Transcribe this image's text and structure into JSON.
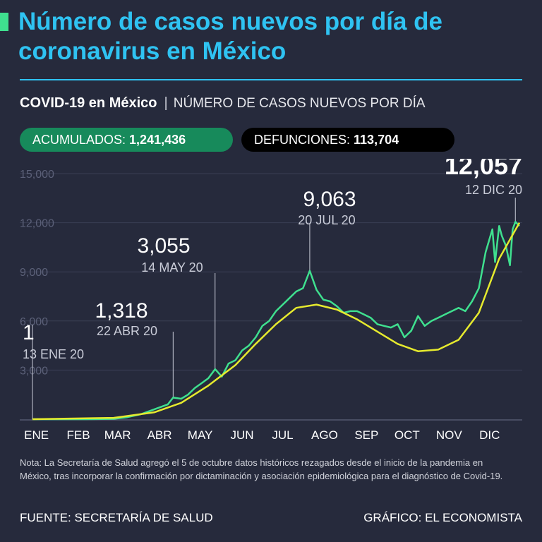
{
  "header": {
    "title": "Número de casos nuevos por día de coronavirus en México",
    "subtitle_bold": "COVID-19 en México",
    "subtitle_sep": "|",
    "subtitle_desc": "NÚMERO DE CASOS NUEVOS POR DÍA",
    "accent_color": "#3fe08f",
    "title_color": "#2fc3f2"
  },
  "stats": {
    "acumulados_label": "ACUMULADOS:",
    "acumulados_value": "1,241,436",
    "defunciones_label": "DEFUNCIONES:",
    "defunciones_value": "113,704",
    "acumulados_color": "#178a5b",
    "defunciones_color": "#000000"
  },
  "chart_data": {
    "type": "line",
    "title": "",
    "xlabel": "",
    "ylabel": "",
    "ylim": [
      0,
      15000
    ],
    "yticks": [
      3000,
      6000,
      9000,
      12000,
      15000
    ],
    "ytick_labels": [
      "3,000",
      "6,000",
      "9,000",
      "12,000",
      "15,000"
    ],
    "x_range_days": [
      0,
      360
    ],
    "months": [
      "ENE",
      "FEB",
      "MAR",
      "ABR",
      "MAY",
      "JUN",
      "JUL",
      "AGO",
      "SEP",
      "OCT",
      "NOV",
      "DIC"
    ],
    "grid": true,
    "series": [
      {
        "type": "line",
        "color": "#3fe08f",
        "x": [
          0,
          40,
          60,
          70,
          80,
          90,
          100,
          104,
          110,
          115,
          120,
          125,
          130,
          135,
          140,
          145,
          150,
          155,
          160,
          165,
          170,
          175,
          180,
          185,
          190,
          195,
          200,
          205,
          210,
          215,
          220,
          225,
          230,
          235,
          240,
          245,
          250,
          255,
          260,
          265,
          270,
          275,
          280,
          285,
          290,
          295,
          300,
          305,
          310,
          315,
          320,
          325,
          330,
          335,
          340,
          342,
          345,
          347,
          350,
          353,
          355,
          357,
          360
        ],
        "y": [
          1,
          0,
          20,
          120,
          300,
          600,
          900,
          1318,
          1250,
          1500,
          1900,
          2200,
          2500,
          3055,
          2600,
          3400,
          3600,
          4200,
          4500,
          5000,
          5700,
          6000,
          6600,
          7000,
          7400,
          7800,
          8000,
          9063,
          7900,
          7300,
          7200,
          6900,
          6500,
          6600,
          6600,
          6400,
          6200,
          5800,
          5700,
          5600,
          5800,
          5000,
          5400,
          6300,
          5700,
          6000,
          6200,
          6400,
          6600,
          6800,
          6600,
          7200,
          8000,
          10200,
          11600,
          9600,
          11800,
          11200,
          10600,
          9400,
          11600,
          12057,
          11800
        ]
      },
      {
        "type": "trend",
        "color": "#e6ea2e",
        "x": [
          0,
          60,
          90,
          110,
          130,
          150,
          165,
          180,
          195,
          210,
          225,
          240,
          255,
          270,
          285,
          300,
          315,
          330,
          345,
          360
        ],
        "y": [
          0,
          80,
          420,
          1000,
          2050,
          3300,
          4600,
          5800,
          6800,
          7000,
          6700,
          6100,
          5350,
          4600,
          4150,
          4250,
          4850,
          6500,
          9800,
          12000
        ]
      }
    ],
    "annotations": [
      {
        "value": "1",
        "date": "13 ENE 20",
        "x": 0,
        "y": 1
      },
      {
        "value": "1,318",
        "date": "22 ABR 20",
        "x": 104,
        "y": 1318
      },
      {
        "value": "3,055",
        "date": "14 MAY 20",
        "x": 135,
        "y": 3055
      },
      {
        "value": "9,063",
        "date": "20 JUL 20",
        "x": 205,
        "y": 9063
      },
      {
        "value": "12,057",
        "date": "12 DIC 20",
        "x": 357,
        "y": 12057
      }
    ]
  },
  "footer": {
    "note": "Nota: La Secretaría de Salud agregó el 5 de octubre datos históricos rezagados desde el inicio de la pandemia en México, tras incorporar la confirmación por dictaminación y asociación epidemiológica para el diagnóstico de Covid-19.",
    "source": "FUENTE: SECRETARÍA DE SALUD",
    "credit": "GRÁFICO: EL ECONOMISTA"
  }
}
